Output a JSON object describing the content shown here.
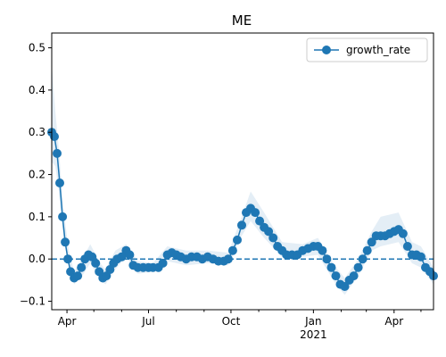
{
  "chart_data": {
    "type": "line",
    "title": "ME",
    "xlabel": "",
    "ylabel": "",
    "x_range": [
      "2020-03-15",
      "2021-05-15"
    ],
    "ylim": [
      -0.12,
      0.535
    ],
    "y_ticks": [
      -0.1,
      0.0,
      0.1,
      0.2,
      0.3,
      0.4,
      0.5
    ],
    "y_tick_labels": [
      "−0.1",
      "0.0",
      "0.1",
      "0.2",
      "0.3",
      "0.4",
      "0.5"
    ],
    "x_major_ticks": [
      {
        "date": "2020-04-01",
        "label": "Apr"
      },
      {
        "date": "2020-07-01",
        "label": "Jul"
      },
      {
        "date": "2020-10-01",
        "label": "Oct"
      },
      {
        "date": "2021-01-01",
        "label": "Jan",
        "sublabel": "2021"
      },
      {
        "date": "2021-04-01",
        "label": "Apr"
      }
    ],
    "x_minor_ticks": [
      "2020-05-01",
      "2020-06-01",
      "2020-08-01",
      "2020-09-01",
      "2020-11-01",
      "2020-12-01",
      "2021-02-01",
      "2021-03-01",
      "2021-05-01"
    ],
    "reference_line": {
      "y": 0,
      "style": "dashed",
      "color": "#1f77b4"
    },
    "legend": {
      "position": "top-right",
      "entries": [
        "growth_rate"
      ]
    },
    "colors": {
      "series": "#1f77b4",
      "band": "#1f77b4"
    },
    "series": [
      {
        "name": "growth_rate",
        "marker": "circle",
        "points": [
          [
            "2020-03-15",
            0.3
          ],
          [
            "2020-03-18",
            0.29
          ],
          [
            "2020-03-21",
            0.25
          ],
          [
            "2020-03-24",
            0.18
          ],
          [
            "2020-03-27",
            0.1
          ],
          [
            "2020-03-30",
            0.04
          ],
          [
            "2020-04-02",
            0.0
          ],
          [
            "2020-04-05",
            -0.03
          ],
          [
            "2020-04-09",
            -0.045
          ],
          [
            "2020-04-13",
            -0.04
          ],
          [
            "2020-04-17",
            -0.02
          ],
          [
            "2020-04-21",
            0.0
          ],
          [
            "2020-04-25",
            0.01
          ],
          [
            "2020-04-29",
            0.005
          ],
          [
            "2020-05-03",
            -0.01
          ],
          [
            "2020-05-07",
            -0.03
          ],
          [
            "2020-05-11",
            -0.045
          ],
          [
            "2020-05-15",
            -0.04
          ],
          [
            "2020-05-19",
            -0.025
          ],
          [
            "2020-05-23",
            -0.01
          ],
          [
            "2020-05-27",
            0.0
          ],
          [
            "2020-06-01",
            0.005
          ],
          [
            "2020-06-06",
            0.02
          ],
          [
            "2020-06-10",
            0.01
          ],
          [
            "2020-06-14",
            -0.015
          ],
          [
            "2020-06-19",
            -0.02
          ],
          [
            "2020-06-25",
            -0.02
          ],
          [
            "2020-07-01",
            -0.02
          ],
          [
            "2020-07-06",
            -0.02
          ],
          [
            "2020-07-12",
            -0.02
          ],
          [
            "2020-07-17",
            -0.01
          ],
          [
            "2020-07-22",
            0.01
          ],
          [
            "2020-07-27",
            0.015
          ],
          [
            "2020-08-01",
            0.01
          ],
          [
            "2020-08-06",
            0.005
          ],
          [
            "2020-08-12",
            0.0
          ],
          [
            "2020-08-18",
            0.005
          ],
          [
            "2020-08-24",
            0.005
          ],
          [
            "2020-08-30",
            0.0
          ],
          [
            "2020-09-05",
            0.005
          ],
          [
            "2020-09-11",
            0.0
          ],
          [
            "2020-09-17",
            -0.005
          ],
          [
            "2020-09-23",
            -0.005
          ],
          [
            "2020-09-28",
            0.0
          ],
          [
            "2020-10-03",
            0.02
          ],
          [
            "2020-10-08",
            0.045
          ],
          [
            "2020-10-13",
            0.08
          ],
          [
            "2020-10-18",
            0.11
          ],
          [
            "2020-10-23",
            0.12
          ],
          [
            "2020-10-28",
            0.11
          ],
          [
            "2020-11-02",
            0.09
          ],
          [
            "2020-11-07",
            0.075
          ],
          [
            "2020-11-12",
            0.065
          ],
          [
            "2020-11-17",
            0.05
          ],
          [
            "2020-11-22",
            0.03
          ],
          [
            "2020-11-27",
            0.02
          ],
          [
            "2020-12-02",
            0.01
          ],
          [
            "2020-12-08",
            0.01
          ],
          [
            "2020-12-14",
            0.01
          ],
          [
            "2020-12-20",
            0.02
          ],
          [
            "2020-12-26",
            0.025
          ],
          [
            "2021-01-01",
            0.03
          ],
          [
            "2021-01-06",
            0.03
          ],
          [
            "2021-01-11",
            0.02
          ],
          [
            "2021-01-16",
            0.0
          ],
          [
            "2021-01-21",
            -0.02
          ],
          [
            "2021-01-26",
            -0.04
          ],
          [
            "2021-01-31",
            -0.06
          ],
          [
            "2021-02-05",
            -0.065
          ],
          [
            "2021-02-10",
            -0.05
          ],
          [
            "2021-02-15",
            -0.04
          ],
          [
            "2021-02-20",
            -0.02
          ],
          [
            "2021-02-25",
            0.0
          ],
          [
            "2021-03-02",
            0.02
          ],
          [
            "2021-03-07",
            0.04
          ],
          [
            "2021-03-12",
            0.055
          ],
          [
            "2021-03-17",
            0.055
          ],
          [
            "2021-03-22",
            0.055
          ],
          [
            "2021-03-27",
            0.06
          ],
          [
            "2021-04-01",
            0.065
          ],
          [
            "2021-04-06",
            0.07
          ],
          [
            "2021-04-11",
            0.06
          ],
          [
            "2021-04-16",
            0.03
          ],
          [
            "2021-04-21",
            0.01
          ],
          [
            "2021-04-26",
            0.01
          ],
          [
            "2021-05-01",
            0.005
          ],
          [
            "2021-05-06",
            -0.02
          ],
          [
            "2021-05-11",
            -0.03
          ],
          [
            "2021-05-15",
            -0.04
          ]
        ],
        "band": [
          [
            "2020-03-15",
            0.23,
            0.46
          ],
          [
            "2020-03-19",
            0.22,
            0.35
          ],
          [
            "2020-03-23",
            0.16,
            0.26
          ],
          [
            "2020-03-28",
            0.05,
            0.12
          ],
          [
            "2020-04-03",
            -0.02,
            0.02
          ],
          [
            "2020-04-09",
            -0.06,
            -0.03
          ],
          [
            "2020-04-18",
            -0.04,
            0.0
          ],
          [
            "2020-04-27",
            -0.01,
            0.035
          ],
          [
            "2020-05-08",
            -0.05,
            -0.01
          ],
          [
            "2020-05-14",
            -0.06,
            -0.025
          ],
          [
            "2020-05-25",
            -0.025,
            0.02
          ],
          [
            "2020-06-06",
            0.005,
            0.035
          ],
          [
            "2020-06-19",
            -0.035,
            -0.005
          ],
          [
            "2020-07-06",
            -0.03,
            -0.01
          ],
          [
            "2020-07-22",
            -0.005,
            0.03
          ],
          [
            "2020-08-12",
            -0.015,
            0.02
          ],
          [
            "2020-09-05",
            -0.01,
            0.02
          ],
          [
            "2020-09-28",
            -0.015,
            0.015
          ],
          [
            "2020-10-13",
            0.055,
            0.1
          ],
          [
            "2020-10-23",
            0.09,
            0.16
          ],
          [
            "2020-11-07",
            0.05,
            0.11
          ],
          [
            "2020-11-27",
            0.005,
            0.04
          ],
          [
            "2020-12-20",
            0.005,
            0.035
          ],
          [
            "2021-01-06",
            0.01,
            0.05
          ],
          [
            "2021-01-26",
            -0.06,
            -0.02
          ],
          [
            "2021-02-05",
            -0.085,
            -0.045
          ],
          [
            "2021-02-20",
            -0.04,
            0.0
          ],
          [
            "2021-03-07",
            0.02,
            0.065
          ],
          [
            "2021-03-17",
            0.03,
            0.1
          ],
          [
            "2021-04-06",
            0.04,
            0.11
          ],
          [
            "2021-04-21",
            -0.01,
            0.04
          ],
          [
            "2021-05-01",
            -0.02,
            0.03
          ],
          [
            "2021-05-15",
            -0.06,
            -0.02
          ]
        ]
      }
    ]
  }
}
